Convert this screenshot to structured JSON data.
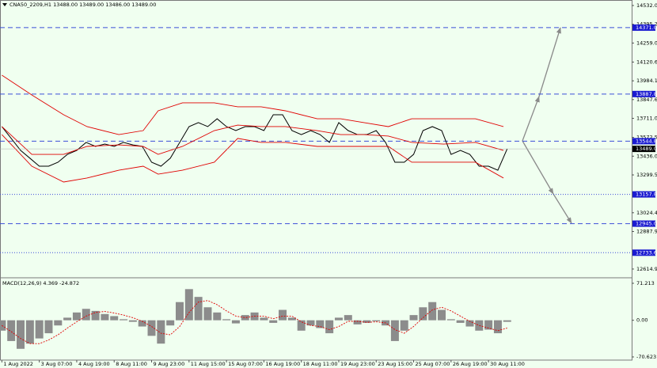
{
  "chart_data": [
    {
      "type": "price",
      "title": "CNA50_2209,H1 13488.00 13489.00 13486.00 13489.00",
      "xlim": [
        -2,
        673
      ],
      "xticks": [
        {
          "value": 0,
          "label": "1 Aug 2022"
        },
        {
          "value": 40,
          "label": "3 Aug 07:00"
        },
        {
          "value": 80,
          "label": "4 Aug 19:00"
        },
        {
          "value": 120,
          "label": "8 Aug 11:00"
        },
        {
          "value": 160,
          "label": "9 Aug 23:00"
        },
        {
          "value": 200,
          "label": "11 Aug 15:00"
        },
        {
          "value": 240,
          "label": "15 Aug 07:00"
        },
        {
          "value": 280,
          "label": "16 Aug 19:00"
        },
        {
          "value": 320,
          "label": "18 Aug 11:00"
        },
        {
          "value": 360,
          "label": "19 Aug 23:00"
        },
        {
          "value": 400,
          "label": "23 Aug 15:00"
        },
        {
          "value": 440,
          "label": "25 Aug 07:00"
        },
        {
          "value": 480,
          "label": "26 Aug 19:00"
        },
        {
          "value": 520,
          "label": "30 Aug 11:00"
        }
      ],
      "ylim": [
        12557,
        14572
      ],
      "yticks": [
        {
          "value": 14532,
          "label": "14532.00"
        },
        {
          "value": 14395.25,
          "label": "14395.25"
        },
        {
          "value": 14259,
          "label": "14259.00"
        },
        {
          "value": 14120.6,
          "label": "14120.60"
        },
        {
          "value": 13984.1,
          "label": "13984.10"
        },
        {
          "value": 13847.6,
          "label": "13847.60"
        },
        {
          "value": 13711,
          "label": "13711.00"
        },
        {
          "value": 13572.5,
          "label": "13572.50"
        },
        {
          "value": 13436,
          "label": "13436.00"
        },
        {
          "value": 13299.5,
          "label": "13299.50"
        },
        {
          "value": 13024.4,
          "label": "13024.40"
        },
        {
          "value": 12887.9,
          "label": "12887.90"
        },
        {
          "value": 12614.9,
          "label": "12614.90"
        }
      ],
      "series": [
        {
          "color": "#000000",
          "x": [
            0,
            10,
            20,
            30,
            40,
            50,
            60,
            70,
            80,
            90,
            100,
            110,
            120,
            130,
            140,
            150,
            160,
            170,
            180,
            190,
            200,
            210,
            220,
            230,
            240,
            250,
            260,
            270,
            280,
            290,
            300,
            310,
            320,
            330,
            340,
            350,
            360,
            370,
            380,
            390,
            400,
            410,
            420,
            430,
            440,
            450,
            460,
            470,
            480,
            490,
            500,
            510,
            520,
            530,
            540
          ],
          "values": [
            13651,
            13565,
            13478,
            13421,
            13363,
            13363,
            13392,
            13449,
            13478,
            13536,
            13507,
            13524,
            13507,
            13536,
            13518,
            13507,
            13392,
            13363,
            13421,
            13536,
            13651,
            13680,
            13651,
            13708,
            13651,
            13622,
            13651,
            13651,
            13622,
            13737,
            13737,
            13622,
            13593,
            13622,
            13593,
            13536,
            13680,
            13622,
            13593,
            13593,
            13622,
            13536,
            13392,
            13392,
            13449,
            13622,
            13651,
            13622,
            13449,
            13478,
            13449,
            13363,
            13363,
            13334,
            13489
          ]
        },
        {
          "color": "#e00000",
          "x": [
            0,
            32,
            66,
            91,
            125,
            151,
            167,
            193,
            227,
            252,
            277,
            303,
            337,
            362,
            387,
            413,
            438,
            472,
            506,
            536
          ],
          "values": [
            14025,
            13881,
            13737,
            13651,
            13593,
            13622,
            13766,
            13824,
            13824,
            13795,
            13795,
            13766,
            13708,
            13708,
            13680,
            13651,
            13708,
            13708,
            13708,
            13651
          ]
        },
        {
          "color": "#e00000",
          "x": [
            0,
            32,
            66,
            91,
            125,
            151,
            167,
            193,
            227,
            252,
            277,
            303,
            337,
            362,
            387,
            413,
            438,
            472,
            506,
            536
          ],
          "values": [
            13651,
            13449,
            13449,
            13507,
            13518,
            13507,
            13449,
            13507,
            13622,
            13662,
            13651,
            13651,
            13622,
            13593,
            13593,
            13582,
            13536,
            13524,
            13536,
            13478
          ]
        },
        {
          "color": "#e00000",
          "x": [
            0,
            32,
            66,
            91,
            125,
            151,
            167,
            193,
            227,
            252,
            277,
            303,
            337,
            362,
            387,
            413,
            438,
            472,
            506,
            536
          ],
          "values": [
            13593,
            13363,
            13248,
            13277,
            13334,
            13363,
            13305,
            13334,
            13392,
            13565,
            13536,
            13536,
            13507,
            13507,
            13507,
            13507,
            13392,
            13392,
            13392,
            13277
          ]
        }
      ],
      "levels": [
        {
          "value": 14371.05,
          "style": "dashed",
          "color": "#3b4fd8"
        },
        {
          "value": 13887.88,
          "style": "dashed",
          "color": "#3b4fd8"
        },
        {
          "value": 13544.84,
          "style": "dashed",
          "color": "#3b4fd8"
        },
        {
          "value": 13157.84,
          "style": "dotted",
          "color": "#3b4fd8"
        },
        {
          "value": 12945.04,
          "style": "dashed",
          "color": "#3b4fd8"
        },
        {
          "value": 12733.68,
          "style": "dotted",
          "color": "#3b4fd8"
        }
      ],
      "last_price": {
        "value": 13489,
        "label": "13489.00"
      }
    },
    {
      "type": "macd",
      "title": "MACD(12,26,9) 4.369 -24.872",
      "xlim": [
        -2,
        673
      ],
      "ylim": [
        -76.7,
        80.3
      ],
      "yticks": [
        71.213,
        {
          "value": 0,
          "label": "0.00"
        },
        -70.623
      ],
      "x": [
        0,
        10,
        20,
        30,
        40,
        50,
        60,
        70,
        80,
        90,
        100,
        110,
        120,
        130,
        140,
        150,
        160,
        170,
        180,
        190,
        200,
        210,
        220,
        230,
        240,
        250,
        260,
        270,
        280,
        290,
        300,
        310,
        320,
        330,
        340,
        350,
        360,
        370,
        380,
        390,
        400,
        410,
        420,
        430,
        440,
        450,
        460,
        470,
        480,
        490,
        500,
        510,
        520,
        530,
        540
      ],
      "histogram": [
        -20,
        -40,
        -55,
        -45,
        -35,
        -25,
        -10,
        5,
        15,
        22,
        18,
        12,
        8,
        2,
        -3,
        -12,
        -30,
        -45,
        -10,
        35,
        60,
        45,
        25,
        15,
        2,
        -6,
        10,
        15,
        5,
        -5,
        20,
        5,
        -20,
        -10,
        -15,
        -25,
        5,
        10,
        -8,
        -5,
        -2,
        -10,
        -40,
        -20,
        10,
        25,
        35,
        20,
        2,
        -5,
        -12,
        -20,
        -18,
        -25,
        -3
      ],
      "signal": [
        -10,
        -22,
        -35,
        -45,
        -45,
        -38,
        -28,
        -15,
        -3,
        8,
        15,
        17,
        14,
        10,
        5,
        -2,
        -12,
        -25,
        -28,
        -12,
        15,
        35,
        38,
        30,
        18,
        8,
        5,
        8,
        8,
        3,
        8,
        8,
        -3,
        -10,
        -12,
        -18,
        -12,
        -2,
        -2,
        -4,
        -3,
        -5,
        -18,
        -25,
        -12,
        5,
        20,
        25,
        18,
        8,
        -2,
        -10,
        -15,
        -20,
        -15
      ],
      "histogram_color": "#8c8c8c",
      "signal_color": "#e00000"
    }
  ]
}
